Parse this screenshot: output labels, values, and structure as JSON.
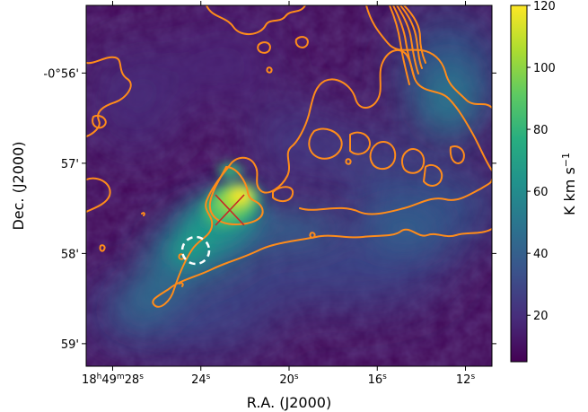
{
  "chart_data": {
    "type": "heatmap",
    "xlabel": "R.A. (J2000)",
    "ylabel": "Dec. (J2000)",
    "x_ticks": [
      {
        "label_html": "18<tspan baseline-shift=\"super\" font-size=\"9\">h</tspan>49<tspan baseline-shift=\"super\" font-size=\"9\">m</tspan>28<tspan baseline-shift=\"super\" font-size=\"9\">s</tspan>"
      },
      {
        "label_html": "24<tspan baseline-shift=\"super\" font-size=\"9\">s</tspan>"
      },
      {
        "label_html": "20<tspan baseline-shift=\"super\" font-size=\"9\">s</tspan>"
      },
      {
        "label_html": "16<tspan baseline-shift=\"super\" font-size=\"9\">s</tspan>"
      },
      {
        "label_html": "12<tspan baseline-shift=\"super\" font-size=\"9\">s</tspan>"
      }
    ],
    "x_tick_labels": [
      "18h49m28s",
      "24s",
      "20s",
      "16s",
      "12s"
    ],
    "x_tick_values_sec": [
      28,
      24,
      20,
      16,
      12
    ],
    "x_range_sec": [
      29.2,
      10.8
    ],
    "y_tick_labels": [
      "-0°56'",
      "57'",
      "58'",
      "59'"
    ],
    "y_tick_values_arcmin": [
      -56,
      -57,
      -58,
      -59
    ],
    "y_range_arcmin": [
      -59.25,
      -55.25
    ],
    "colorbar": {
      "label": "K km s⁻¹",
      "label_plain": "K km s-1",
      "tick_values": [
        20,
        40,
        60,
        80,
        100,
        120
      ],
      "tick_labels": [
        "20",
        "40",
        "60",
        "80",
        "100",
        "120"
      ],
      "range": [
        5,
        120
      ],
      "colormap": "viridis"
    },
    "peak": {
      "ra_sec": 22.6,
      "dec_arcmin": -57.52,
      "value": 118
    },
    "markers": [
      {
        "type": "cross",
        "color": "#c62828",
        "ra_sec": 22.6,
        "dec_arcmin": -57.52
      },
      {
        "type": "dashed-circle",
        "color": "#ffffff",
        "ra_sec": 24.5,
        "dec_arcmin": -57.98
      }
    ],
    "contour_color": "#ff8c1a"
  }
}
